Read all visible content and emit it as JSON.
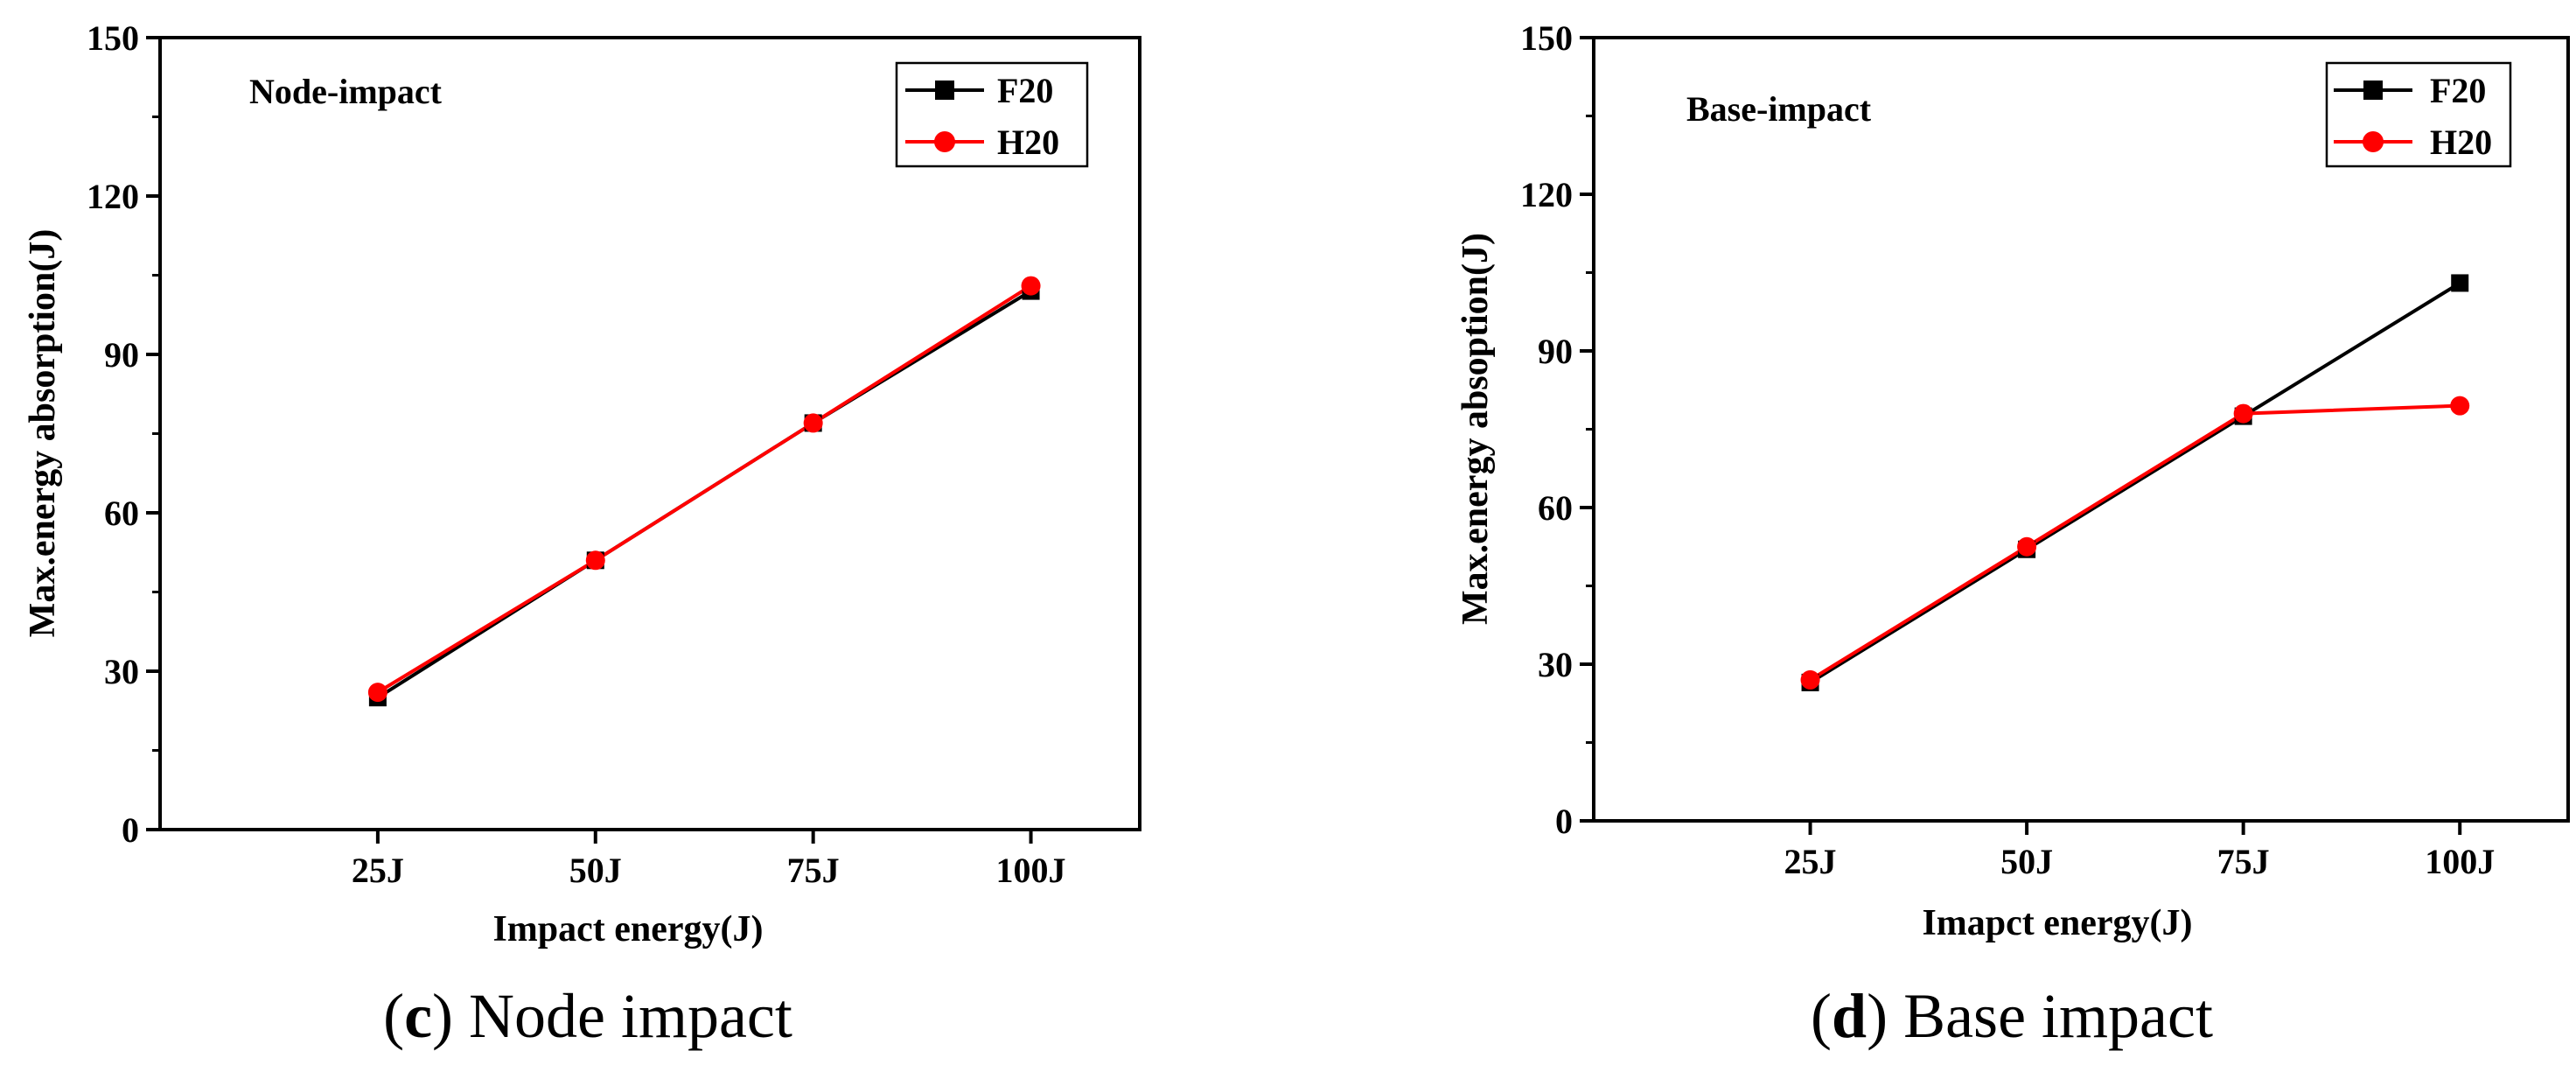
{
  "chart_data": [
    {
      "type": "line",
      "panel_title": "Node-impact",
      "categories": [
        "25J",
        "50J",
        "75J",
        "100J"
      ],
      "x": [
        25,
        50,
        75,
        100
      ],
      "xlim": [
        0,
        112.5
      ],
      "series": [
        {
          "name": "F20",
          "values": [
            25,
            51,
            77,
            102
          ],
          "color": "#000000",
          "marker": "square"
        },
        {
          "name": "H20",
          "values": [
            26,
            51,
            77,
            103
          ],
          "color": "#ff0000",
          "marker": "circle"
        }
      ],
      "xlabel": "Impact energy(J)",
      "ylabel": "Max.energy absorption(J)",
      "ylim": [
        0,
        150
      ],
      "yticks": [
        0,
        30,
        60,
        90,
        120,
        150
      ],
      "legend_position": "top-right",
      "caption_letter": "c",
      "caption_text": "Node impact"
    },
    {
      "type": "line",
      "panel_title": "Base-impact",
      "categories": [
        "25J",
        "50J",
        "75J",
        "100J"
      ],
      "x": [
        25,
        50,
        75,
        100
      ],
      "xlim": [
        0,
        112.5
      ],
      "series": [
        {
          "name": "F20",
          "values": [
            26.5,
            52,
            77.5,
            103
          ],
          "color": "#000000",
          "marker": "square"
        },
        {
          "name": "H20",
          "values": [
            27,
            52.5,
            78,
            79.5
          ],
          "color": "#ff0000",
          "marker": "circle"
        }
      ],
      "xlabel": "Imapct energy(J)",
      "ylabel": "Max.energy absoption(J)",
      "ylim": [
        0,
        150
      ],
      "yticks": [
        0,
        30,
        60,
        90,
        120,
        150
      ],
      "legend_position": "top-right",
      "caption_letter": "d",
      "caption_text": "Base impact"
    }
  ]
}
